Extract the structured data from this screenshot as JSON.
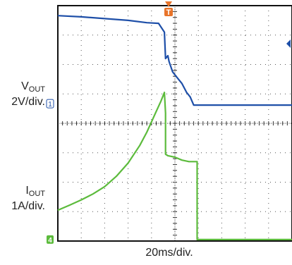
{
  "chart_data": {
    "type": "line",
    "grid": true,
    "xlim": [
      0,
      10
    ],
    "ylim": [
      -4,
      4
    ],
    "xlabel": "20ms/div.",
    "series": [
      {
        "label_main": "V",
        "label_sub": "OUT",
        "label_scale": "2V/div.",
        "color": "#1e4fa8",
        "x": [
          0.0,
          1.0,
          2.0,
          3.0,
          3.8,
          4.3,
          4.55,
          4.6,
          4.7,
          4.75,
          4.9,
          5.1,
          5.3,
          5.5,
          5.65,
          5.8,
          6.0,
          7.0,
          8.0,
          9.0,
          10.0
        ],
        "y": [
          3.66,
          3.62,
          3.56,
          3.5,
          3.42,
          3.4,
          3.1,
          2.2,
          2.3,
          2.1,
          1.75,
          1.55,
          1.35,
          1.05,
          0.9,
          0.62,
          0.62,
          0.62,
          0.62,
          0.62,
          0.62
        ]
      },
      {
        "label_main": "I",
        "label_sub": "OUT",
        "label_scale": "1A/div.",
        "color": "#5cbb3c",
        "x": [
          0.0,
          0.5,
          1.0,
          1.5,
          2.0,
          2.5,
          3.0,
          3.5,
          3.8,
          4.0,
          4.2,
          4.4,
          4.55,
          4.6,
          4.6,
          4.7,
          5.0,
          5.3,
          5.6,
          5.95,
          5.95,
          6.2,
          7.0,
          8.0,
          9.0,
          10.0
        ],
        "y": [
          -2.95,
          -2.78,
          -2.6,
          -2.4,
          -2.15,
          -1.8,
          -1.35,
          -0.75,
          -0.3,
          0.05,
          0.4,
          0.75,
          1.05,
          0.35,
          -1.05,
          -1.1,
          -1.15,
          -1.25,
          -1.3,
          -1.3,
          -3.95,
          -3.95,
          -3.95,
          -3.95,
          -3.95,
          -3.95
        ]
      }
    ],
    "markers": {
      "trigger": "T",
      "ch1": "1",
      "ch4": "4"
    }
  }
}
